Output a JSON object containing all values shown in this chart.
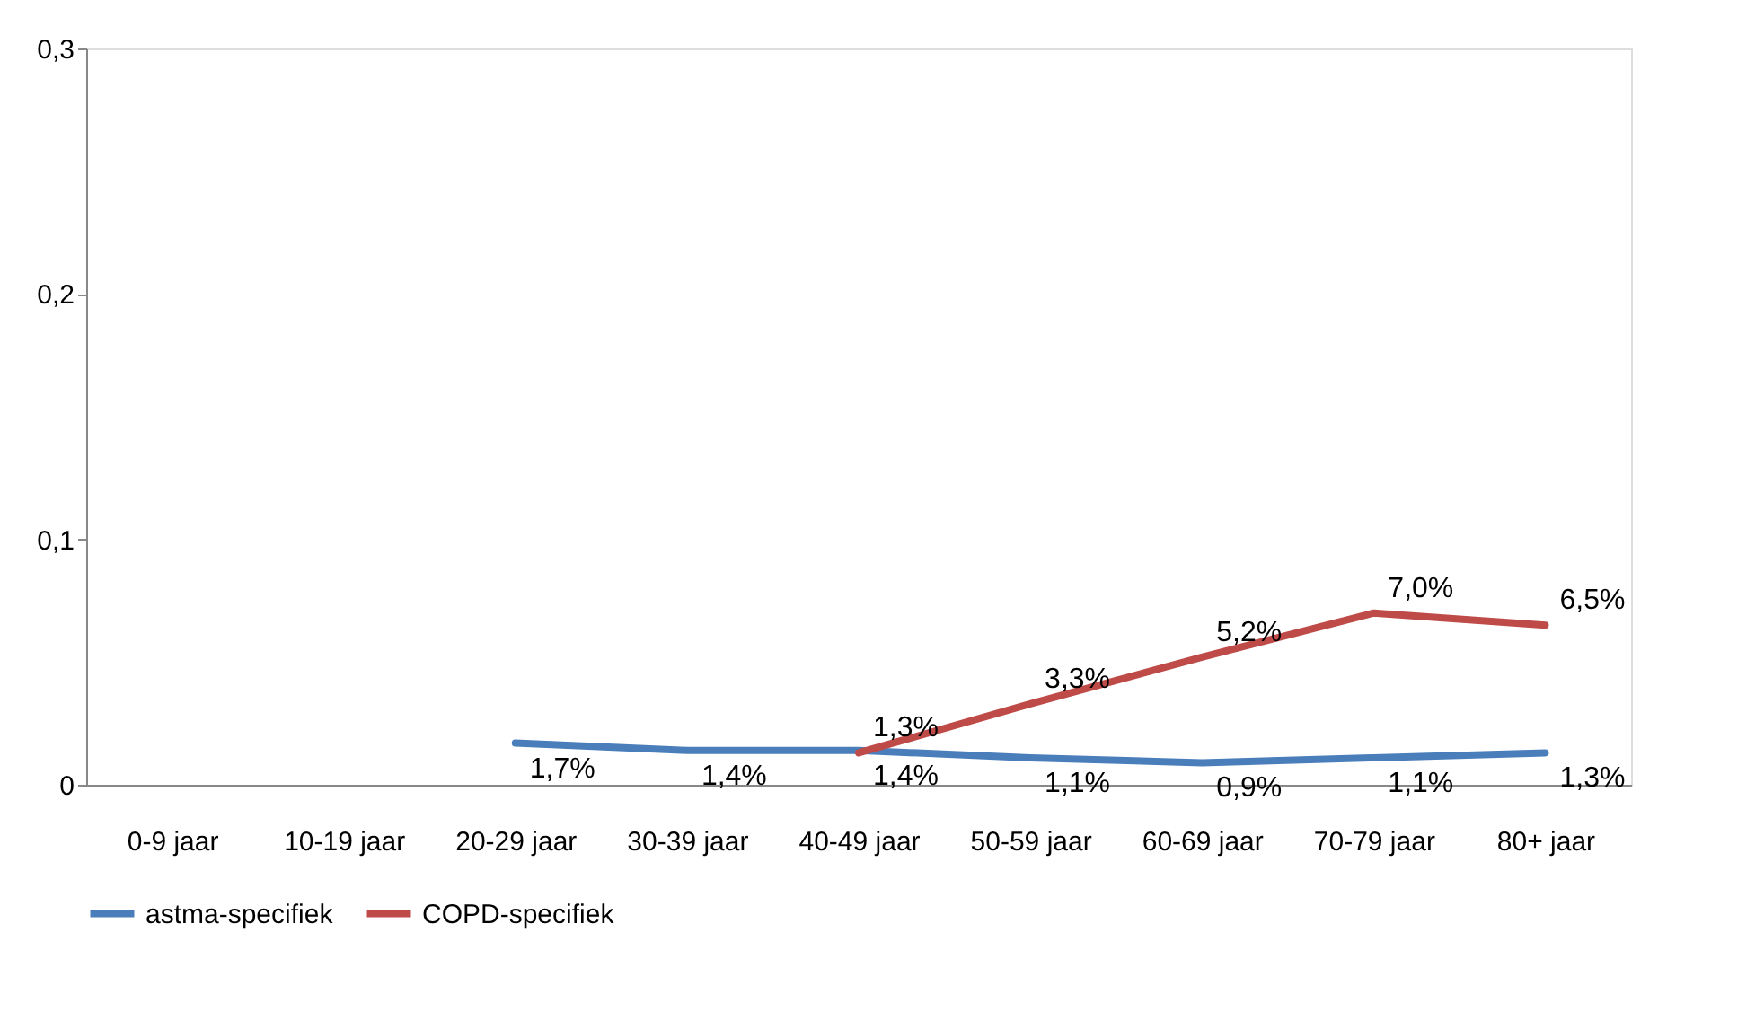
{
  "chart_data": {
    "type": "line",
    "categories": [
      "0-9 jaar",
      "10-19 jaar",
      "20-29 jaar",
      "30-39 jaar",
      "40-49 jaar",
      "50-59 jaar",
      "60-69 jaar",
      "70-79 jaar",
      "80+ jaar"
    ],
    "series": [
      {
        "name": "astma-specifiek",
        "color": "#4a7ebb",
        "values": [
          null,
          null,
          0.017,
          0.014,
          0.014,
          0.011,
          0.009,
          0.011,
          0.013
        ],
        "value_labels": [
          null,
          null,
          "1,7%",
          "1,4%",
          "1,4%",
          "1,1%",
          "0,9%",
          "1,1%",
          "1,3%"
        ]
      },
      {
        "name": "COPD-specifiek",
        "color": "#be4b48",
        "values": [
          null,
          null,
          null,
          null,
          0.013,
          0.033,
          0.052,
          0.07,
          0.065
        ],
        "value_labels": [
          null,
          null,
          null,
          null,
          "1,3%",
          "3,3%",
          "5,2%",
          "7,0%",
          "6,5%"
        ]
      }
    ],
    "ylim": [
      0,
      0.3
    ],
    "yticks": [
      0,
      {
        "value": 0.1,
        "label": "0,1"
      },
      {
        "value": 0.2,
        "label": "0,2"
      },
      {
        "value": 0.3,
        "label": "0,3"
      }
    ],
    "grid": false,
    "legend": "bottom",
    "marker": "none",
    "line_style": "solid"
  }
}
